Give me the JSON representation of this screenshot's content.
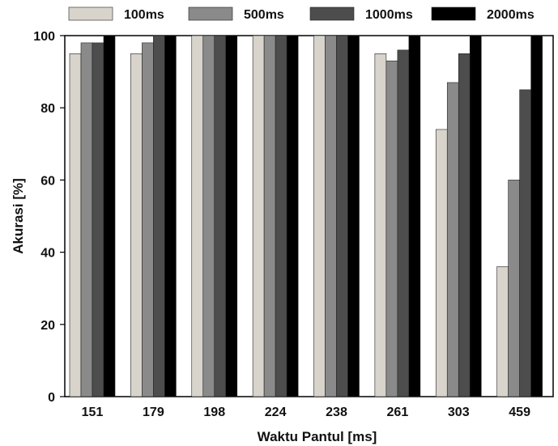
{
  "chart_data": {
    "type": "bar",
    "title": "",
    "xlabel": "Waktu Pantul [ms]",
    "ylabel": "Akurasi [%]",
    "ylim": [
      0,
      100
    ],
    "yticks": [
      "0",
      "20",
      "40",
      "60",
      "80",
      "100"
    ],
    "categories": [
      "151",
      "179",
      "198",
      "224",
      "238",
      "261",
      "303",
      "459"
    ],
    "series": [
      {
        "name": "100ms",
        "color": "#d8d4cc",
        "values": [
          95,
          95,
          100,
          100,
          100,
          95,
          74,
          36
        ]
      },
      {
        "name": "500ms",
        "color": "#8a8a8a",
        "values": [
          98,
          98,
          100,
          100,
          100,
          93,
          87,
          60
        ]
      },
      {
        "name": "1000ms",
        "color": "#4d4d4d",
        "values": [
          98,
          100,
          100,
          100,
          100,
          96,
          95,
          85
        ]
      },
      {
        "name": "2000ms",
        "color": "#000000",
        "values": [
          100,
          100,
          100,
          100,
          100,
          100,
          100,
          100
        ]
      }
    ],
    "legend": "top",
    "grid": false
  }
}
